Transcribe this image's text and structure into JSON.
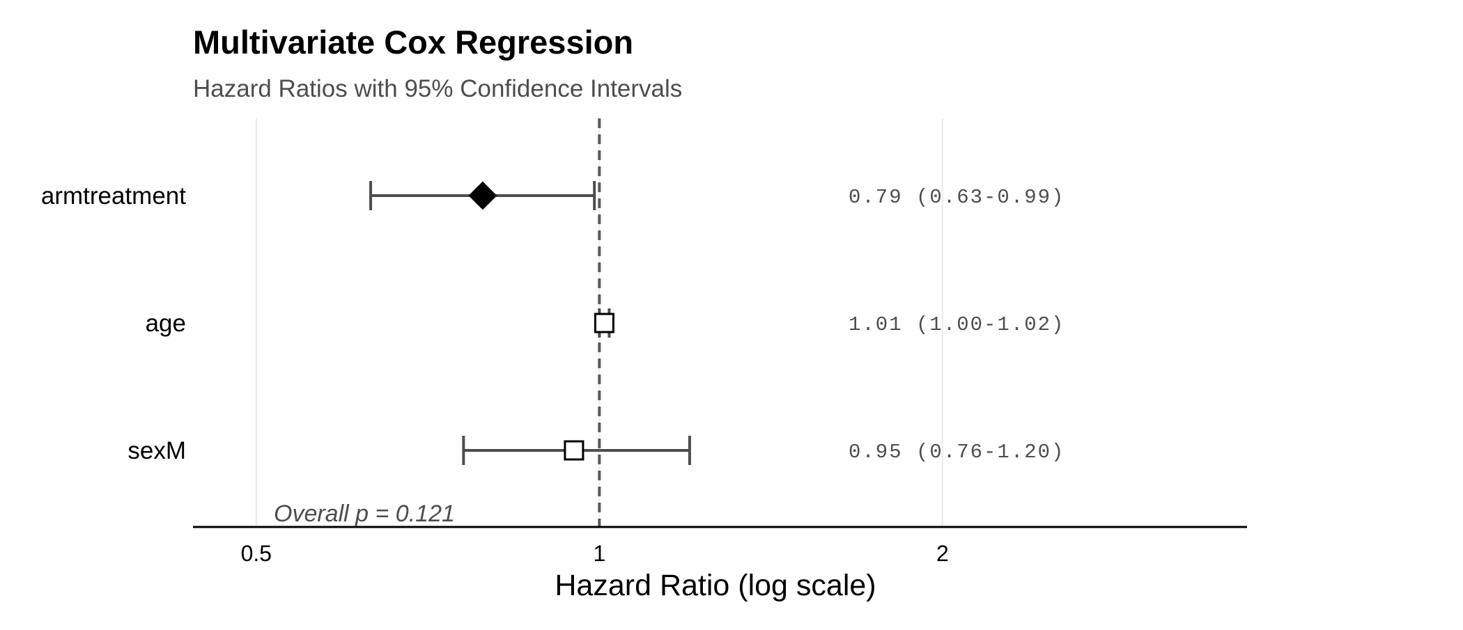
{
  "chart_data": {
    "type": "forest",
    "title": "Multivariate Cox Regression",
    "subtitle": "Hazard Ratios with 95% Confidence Intervals",
    "xlabel": "Hazard Ratio (log scale)",
    "x_scale": "log",
    "x_ticks": [
      0.5,
      1,
      2
    ],
    "x_tick_labels": [
      "0.5",
      "1",
      "2"
    ],
    "xlim": [
      0.44,
      3.7
    ],
    "reference_line": 1,
    "grid": "vertical major",
    "rows": [
      {
        "label": "armtreatment",
        "hr": 0.79,
        "lower": 0.63,
        "upper": 0.99,
        "text": "0.79 (0.63-0.99)",
        "marker": "diamond",
        "fill": "#000000"
      },
      {
        "label": "age",
        "hr": 1.01,
        "lower": 1.0,
        "upper": 1.02,
        "text": "1.01 (1.00-1.02)",
        "marker": "square",
        "fill": "#ffffff"
      },
      {
        "label": "sexM",
        "hr": 0.95,
        "lower": 0.76,
        "upper": 1.2,
        "text": "0.95 (0.76-1.20)",
        "marker": "square",
        "fill": "#ffffff"
      }
    ],
    "annotation": "Overall p = 0.121",
    "colors": {
      "ci_line": "#4d4d4d",
      "reference_line": "#595959",
      "grid": "#ebebeb",
      "marker_stroke": "#000000"
    }
  }
}
